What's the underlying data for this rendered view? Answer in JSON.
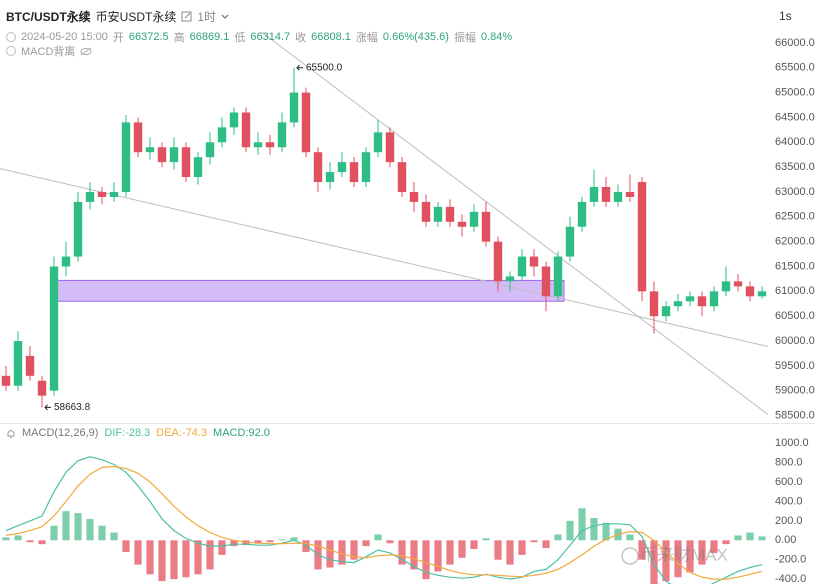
{
  "header": {
    "symbol": "BTC/USDT永续",
    "exchange": "币安USDT永续",
    "interval": "1时",
    "resolution_button": "1s"
  },
  "ohlc_row": {
    "date": "2024-05-20 15:00",
    "open_label": "开",
    "open": 66372.5,
    "high_label": "高",
    "high": 66869.1,
    "low_label": "低",
    "low": 66314.7,
    "close_label": "收",
    "close": 66808.1,
    "change_label": "涨幅",
    "change": "0.66%(435.6)",
    "amplitude_label": "振幅",
    "amplitude": "0.84%"
  },
  "indicator_row": {
    "name": "MACD背离"
  },
  "watermark": "币来财MAX",
  "chart_data": [
    {
      "type": "candlestick",
      "up_color": "#2ebd85",
      "down_color": "#e0505e",
      "open": [
        59300,
        59100,
        59700,
        59200,
        59000,
        61500,
        61700,
        62800,
        63000,
        62900,
        63000,
        64400,
        63800,
        63900,
        63600,
        63900,
        63300,
        63700,
        64000,
        64300,
        64600,
        63900,
        64000,
        63900,
        64400,
        65000,
        63800,
        63200,
        63400,
        63600,
        63200,
        63800,
        64200,
        63600,
        63000,
        62800,
        62400,
        62700,
        62400,
        62300,
        62600,
        62000,
        61200,
        61300,
        61700,
        61500,
        60900,
        61700,
        62300,
        62800,
        63100,
        62800,
        63000,
        63200,
        61000,
        60500,
        60700,
        60800,
        60900,
        60700,
        61000,
        61200,
        61100,
        60900
      ],
      "high": [
        59500,
        60200,
        59900,
        59300,
        61700,
        62000,
        63000,
        63200,
        63100,
        63200,
        64550,
        64500,
        64100,
        64000,
        64100,
        64000,
        63800,
        64200,
        64500,
        64700,
        64700,
        64200,
        64150,
        64600,
        65500,
        65100,
        63900,
        63600,
        63800,
        63700,
        63900,
        64450,
        64300,
        63700,
        63200,
        62950,
        62800,
        62850,
        62550,
        62750,
        62800,
        62100,
        61400,
        61850,
        61850,
        61600,
        61800,
        62500,
        62900,
        63450,
        63300,
        63150,
        63350,
        63300,
        61200,
        60800,
        60950,
        61000,
        61000,
        61100,
        61500,
        61350,
        61200,
        61100
      ],
      "low": [
        59000,
        59000,
        59200,
        58663.8,
        58900,
        61300,
        61600,
        62650,
        62750,
        62800,
        62900,
        63700,
        63650,
        63500,
        63450,
        63200,
        63150,
        63550,
        63900,
        64150,
        63800,
        63750,
        63750,
        63800,
        64300,
        63700,
        63000,
        63050,
        63300,
        63100,
        63100,
        63700,
        63500,
        62900,
        62600,
        62300,
        62300,
        62300,
        62100,
        62200,
        61900,
        61000,
        61000,
        61200,
        61300,
        60600,
        60800,
        61600,
        62200,
        62700,
        62700,
        62700,
        62800,
        60800,
        60150,
        60400,
        60600,
        60700,
        60500,
        60600,
        60900,
        61000,
        60800,
        60850
      ],
      "close": [
        59100,
        60000,
        59300,
        58900,
        61500,
        61700,
        62800,
        63000,
        62900,
        63000,
        64400,
        63800,
        63900,
        63600,
        63900,
        63300,
        63700,
        64000,
        64300,
        64600,
        63900,
        64000,
        63900,
        64400,
        65000,
        63800,
        63200,
        63400,
        63600,
        63200,
        63800,
        64200,
        63600,
        63000,
        62800,
        62400,
        62700,
        62400,
        62300,
        62600,
        62000,
        61200,
        61300,
        61700,
        61500,
        60900,
        61700,
        62300,
        62800,
        63100,
        62800,
        63000,
        62900,
        61000,
        60500,
        60700,
        60800,
        60900,
        60700,
        61000,
        61200,
        61100,
        60900,
        61000
      ],
      "ylim": [
        58350,
        66300
      ],
      "yticks": [
        {
          "value": 58500,
          "label": "58500.0"
        },
        {
          "value": 59000,
          "label": "59000.0"
        },
        {
          "value": 59500,
          "label": "59500.0"
        },
        {
          "value": 60000,
          "label": "60000.0"
        },
        {
          "value": 60500,
          "label": "60500.0"
        },
        {
          "value": 61000,
          "label": "61000.0"
        },
        {
          "value": 61500,
          "label": "61500.0"
        },
        {
          "value": 62000,
          "label": "62000.0"
        },
        {
          "value": 62500,
          "label": "62500.0"
        },
        {
          "value": 63000,
          "label": "63000.0"
        },
        {
          "value": 63500,
          "label": "63500.0"
        },
        {
          "value": 64000,
          "label": "64000.0"
        },
        {
          "value": 64500,
          "label": "64500.0"
        },
        {
          "value": 65000,
          "label": "65000.0"
        },
        {
          "value": 65500,
          "label": "65500.0"
        },
        {
          "value": 66000,
          "label": "66000.0"
        }
      ],
      "annotations": [
        {
          "index": 24,
          "value": 65500,
          "label": "65500.0"
        },
        {
          "index": 3,
          "value": 58663.8,
          "label": "58663.8"
        }
      ],
      "trendlines": [
        {
          "x": [
            21.3,
            63.5
          ],
          "y": [
            66220,
            58520
          ],
          "color": "#bdbdbd"
        },
        {
          "x": [
            -0.5,
            63.5
          ],
          "y": [
            63470,
            59890
          ],
          "color": "#bdbdbd"
        }
      ],
      "zone": {
        "x": [
          4,
          46.5
        ],
        "y": [
          61220,
          60800
        ],
        "color": "#d4bdf7",
        "border": "#a066f0"
      }
    },
    {
      "type": "macd",
      "indicator": "MACD(12,26,9)",
      "histogram": {
        "name": "MACD:92.0",
        "color": "#2ea37a",
        "up_color": "#7ccfaa",
        "down_color": "#ea7c86",
        "values": [
          30,
          50,
          -20,
          -40,
          150,
          300,
          280,
          220,
          150,
          80,
          -120,
          -250,
          -350,
          -420,
          -400,
          -380,
          -350,
          -300,
          -150,
          -60,
          -50,
          -30,
          -20,
          10,
          30,
          -120,
          -300,
          -280,
          -250,
          -200,
          -60,
          60,
          -30,
          -250,
          -300,
          -400,
          -320,
          -250,
          -180,
          -90,
          20,
          -200,
          -250,
          -150,
          -20,
          -80,
          60,
          200,
          330,
          230,
          180,
          120,
          60,
          -200,
          -450,
          -420,
          -380,
          -330,
          -250,
          -130,
          -40,
          50,
          80,
          40
        ]
      },
      "series": [
        {
          "name": "DIF:-28.3",
          "color": "#4cbfa8",
          "values": [
            100,
            150,
            200,
            250,
            500,
            700,
            820,
            860,
            830,
            780,
            700,
            560,
            400,
            220,
            100,
            20,
            -30,
            -60,
            -60,
            -40,
            -40,
            -50,
            -50,
            -30,
            0,
            -50,
            -150,
            -200,
            -220,
            -230,
            -170,
            -100,
            -130,
            -200,
            -270,
            -330,
            -360,
            -380,
            -390,
            -380,
            -350,
            -380,
            -400,
            -380,
            -320,
            -300,
            -200,
            -50,
            100,
            150,
            170,
            170,
            160,
            40,
            -250,
            -420,
            -500,
            -520,
            -500,
            -440,
            -380,
            -320,
            -280,
            -250
          ]
        },
        {
          "name": "DEA:-74.3",
          "color": "#f2a93b",
          "values": [
            50,
            70,
            100,
            140,
            250,
            400,
            560,
            680,
            750,
            760,
            740,
            690,
            600,
            480,
            350,
            240,
            150,
            80,
            30,
            0,
            -20,
            -30,
            -35,
            -35,
            -30,
            -35,
            -60,
            -100,
            -140,
            -170,
            -180,
            -160,
            -150,
            -160,
            -190,
            -230,
            -270,
            -310,
            -340,
            -355,
            -355,
            -360,
            -370,
            -375,
            -360,
            -340,
            -300,
            -230,
            -150,
            -60,
            10,
            60,
            90,
            80,
            0,
            -120,
            -240,
            -330,
            -380,
            -400,
            -400,
            -380,
            -350,
            -320
          ]
        }
      ],
      "ylim": [
        -450,
        1115
      ],
      "yticks": [
        {
          "value": -400,
          "label": "-400.0"
        },
        {
          "value": -200,
          "label": "-200.0"
        },
        {
          "value": 0,
          "label": "0.00"
        },
        {
          "value": 200,
          "label": "200.0"
        },
        {
          "value": 400,
          "label": "400.0"
        },
        {
          "value": 600,
          "label": "600.0"
        },
        {
          "value": 800,
          "label": "800.0"
        },
        {
          "value": 1000,
          "label": "1000.0"
        }
      ]
    }
  ]
}
